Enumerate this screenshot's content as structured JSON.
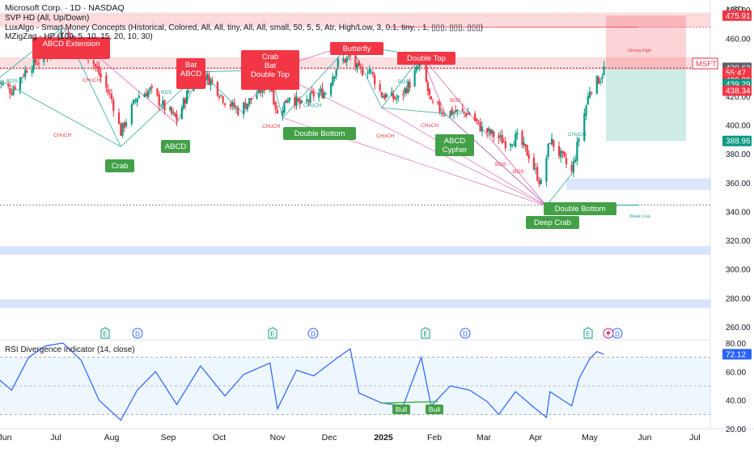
{
  "header": {
    "title": "Microsoft Corp. · 1D · NASDAQ",
    "indicator_1": "SVP HD (All, Up/Down)",
    "indicator_2": "LuxAlgo - Smart Money Concepts (Historical, Colored, All, All, tiny, All, All, small, 50, 5, 5, Atr, High/Low, 3, 0.1, tiny, , 1, ▯▯▯, ▯▯▯, ▯▯▯)",
    "indicator_3": "MZigZag - HP (100, 5, 10, 15, 20, 10, 30)"
  },
  "currency": "USD",
  "price_axis": {
    "ticks": [
      "480.00",
      "460.00",
      "440.00",
      "420.00",
      "400.00",
      "380.00",
      "360.00",
      "340.00",
      "320.00",
      "300.00",
      "280.00",
      "260.00"
    ],
    "labels": [
      {
        "text": "475.91",
        "bg": "#f23645",
        "fg": "#ffffff"
      },
      {
        "text": "439.63",
        "bg": "#5d606b",
        "fg": "#ffffff"
      },
      {
        "text": "55:47",
        "bg": "#f23645",
        "fg": "#ffffff"
      },
      {
        "text": "439.29",
        "bg": "#f23645",
        "fg": "#ffffff"
      },
      {
        "text": "439.29",
        "bg": "#089981",
        "fg": "#ffffff"
      },
      {
        "text": "438.34",
        "bg": "#f23645",
        "fg": "#ffffff"
      },
      {
        "text": "388.96",
        "bg": "#089981",
        "fg": "#ffffff"
      }
    ],
    "symbol_tag": "MSFT"
  },
  "time_axis": [
    "Jun",
    "Jul",
    "Aug",
    "Sep",
    "Oct",
    "Nov",
    "Dec",
    "2025",
    "Feb",
    "Mar",
    "Apr",
    "May",
    "Jun",
    "Jul"
  ],
  "rsi": {
    "title": "RSI Divergence Indicator (14, close)",
    "ticks": [
      "80.00",
      "60.00",
      "40.00",
      "20.00"
    ],
    "value_label": "72.12",
    "bull_labels": [
      "Bull",
      "Bull"
    ]
  },
  "pattern_labels": [
    {
      "text": "ABCD Extension",
      "kind": "bear"
    },
    {
      "text": "Bat\nABCD",
      "kind": "bear"
    },
    {
      "text": "Crab\nBat\nDouble Top",
      "kind": "bear"
    },
    {
      "text": "Butterfly",
      "kind": "bear"
    },
    {
      "text": "Double Top",
      "kind": "bear"
    },
    {
      "text": "Crab",
      "kind": "bull"
    },
    {
      "text": "ABCD",
      "kind": "bull"
    },
    {
      "text": "Double Bottom",
      "kind": "bull"
    },
    {
      "text": "ABCD\nCypher",
      "kind": "bull"
    },
    {
      "text": "Double Bottom",
      "kind": "bull"
    },
    {
      "text": "Deep Crab",
      "kind": "bull"
    }
  ],
  "structure_labels": [
    "BOS",
    "CHoCH",
    "CHoCH",
    "BOS",
    "CHoCH",
    "CHoCH",
    "BOS",
    "CHoCH",
    "CHoCH",
    "BOS",
    "BOS",
    "CHoCH",
    "Strong High",
    "Weak Low",
    "BOS",
    "BOS"
  ],
  "event_markers": [
    "E",
    "D",
    "E",
    "D",
    "E",
    "D",
    "E",
    "D"
  ],
  "chart_data": [
    {
      "type": "candlestick",
      "title": "Microsoft Corp. · 1D · NASDAQ",
      "y_range": [
        251,
        488
      ],
      "x_labels": [
        "Jun",
        "Jul",
        "Aug",
        "Sep",
        "Oct",
        "Nov",
        "Dec",
        "2025",
        "Feb",
        "Mar",
        "Apr",
        "May",
        "Jun",
        "Jul"
      ],
      "close_path": [
        {
          "date": "2024-05-28",
          "close": 430
        },
        {
          "date": "2024-06-05",
          "close": 424
        },
        {
          "date": "2024-06-15",
          "close": 441
        },
        {
          "date": "2024-06-25",
          "close": 447
        },
        {
          "date": "2024-07-05",
          "close": 466
        },
        {
          "date": "2024-07-12",
          "close": 458
        },
        {
          "date": "2024-07-22",
          "close": 443
        },
        {
          "date": "2024-08-01",
          "close": 418
        },
        {
          "date": "2024-08-06",
          "close": 395
        },
        {
          "date": "2024-08-15",
          "close": 420
        },
        {
          "date": "2024-08-22",
          "close": 424
        },
        {
          "date": "2024-08-30",
          "close": 412
        },
        {
          "date": "2024-09-06",
          "close": 404
        },
        {
          "date": "2024-09-13",
          "close": 424
        },
        {
          "date": "2024-09-20",
          "close": 436
        },
        {
          "date": "2024-09-27",
          "close": 430
        },
        {
          "date": "2024-10-04",
          "close": 417
        },
        {
          "date": "2024-10-11",
          "close": 410
        },
        {
          "date": "2024-10-18",
          "close": 418
        },
        {
          "date": "2024-10-28",
          "close": 430
        },
        {
          "date": "2024-11-01",
          "close": 407
        },
        {
          "date": "2024-11-08",
          "close": 421
        },
        {
          "date": "2024-11-15",
          "close": 413
        },
        {
          "date": "2024-11-22",
          "close": 421
        },
        {
          "date": "2024-11-29",
          "close": 423
        },
        {
          "date": "2024-12-06",
          "close": 443
        },
        {
          "date": "2024-12-13",
          "close": 447
        },
        {
          "date": "2024-12-18",
          "close": 437
        },
        {
          "date": "2024-12-24",
          "close": 439
        },
        {
          "date": "2024-12-31",
          "close": 421
        },
        {
          "date": "2025-01-10",
          "close": 418
        },
        {
          "date": "2025-01-17",
          "close": 429
        },
        {
          "date": "2025-01-24",
          "close": 444
        },
        {
          "date": "2025-01-30",
          "close": 414
        },
        {
          "date": "2025-02-07",
          "close": 409
        },
        {
          "date": "2025-02-14",
          "close": 409
        },
        {
          "date": "2025-02-21",
          "close": 408
        },
        {
          "date": "2025-02-28",
          "close": 397
        },
        {
          "date": "2025-03-07",
          "close": 393
        },
        {
          "date": "2025-03-14",
          "close": 388
        },
        {
          "date": "2025-03-21",
          "close": 391
        },
        {
          "date": "2025-03-28",
          "close": 379
        },
        {
          "date": "2025-04-04",
          "close": 359
        },
        {
          "date": "2025-04-09",
          "close": 390
        },
        {
          "date": "2025-04-21",
          "close": 367
        },
        {
          "date": "2025-04-25",
          "close": 391
        },
        {
          "date": "2025-05-01",
          "close": 425
        },
        {
          "date": "2025-05-07",
          "close": 433
        },
        {
          "date": "2025-05-09",
          "close": 439
        }
      ],
      "levels": [
        {
          "name": "Strong High",
          "value": 468
        },
        {
          "name": "Weak Low",
          "value": 344.5
        }
      ],
      "long_position": {
        "entry": 439.29,
        "target": 475.91,
        "stop": 388.96
      }
    },
    {
      "type": "line",
      "title": "RSI Divergence Indicator (14, close)",
      "y_range": [
        20,
        80
      ],
      "series": [
        {
          "values": [
            {
              "date": "2024-05-28",
              "rsi": 55
            },
            {
              "date": "2024-06-05",
              "rsi": 47
            },
            {
              "date": "2024-06-15",
              "rsi": 70
            },
            {
              "date": "2024-06-25",
              "rsi": 78
            },
            {
              "date": "2024-07-05",
              "rsi": 80
            },
            {
              "date": "2024-07-15",
              "rsi": 68
            },
            {
              "date": "2024-07-25",
              "rsi": 40
            },
            {
              "date": "2024-08-06",
              "rsi": 26
            },
            {
              "date": "2024-08-15",
              "rsi": 47
            },
            {
              "date": "2024-08-25",
              "rsi": 60
            },
            {
              "date": "2024-09-06",
              "rsi": 37
            },
            {
              "date": "2024-09-20",
              "rsi": 64
            },
            {
              "date": "2024-10-04",
              "rsi": 43
            },
            {
              "date": "2024-10-14",
              "rsi": 58
            },
            {
              "date": "2024-10-28",
              "rsi": 66
            },
            {
              "date": "2024-11-01",
              "rsi": 34
            },
            {
              "date": "2024-11-12",
              "rsi": 61
            },
            {
              "date": "2024-11-22",
              "rsi": 57
            },
            {
              "date": "2024-12-06",
              "rsi": 70
            },
            {
              "date": "2024-12-13",
              "rsi": 76
            },
            {
              "date": "2024-12-18",
              "rsi": 45
            },
            {
              "date": "2024-12-31",
              "rsi": 38
            },
            {
              "date": "2025-01-13",
              "rsi": 36
            },
            {
              "date": "2025-01-24",
              "rsi": 70
            },
            {
              "date": "2025-01-30",
              "rsi": 36
            },
            {
              "date": "2025-02-10",
              "rsi": 50
            },
            {
              "date": "2025-02-21",
              "rsi": 47
            },
            {
              "date": "2025-03-03",
              "rsi": 39
            },
            {
              "date": "2025-03-10",
              "rsi": 30
            },
            {
              "date": "2025-03-20",
              "rsi": 46
            },
            {
              "date": "2025-03-31",
              "rsi": 35
            },
            {
              "date": "2025-04-07",
              "rsi": 28
            },
            {
              "date": "2025-04-09",
              "rsi": 46
            },
            {
              "date": "2025-04-21",
              "rsi": 36
            },
            {
              "date": "2025-04-25",
              "rsi": 55
            },
            {
              "date": "2025-05-01",
              "rsi": 69
            },
            {
              "date": "2025-05-05",
              "rsi": 74
            },
            {
              "date": "2025-05-09",
              "rsi": 72.12
            }
          ]
        }
      ]
    }
  ]
}
